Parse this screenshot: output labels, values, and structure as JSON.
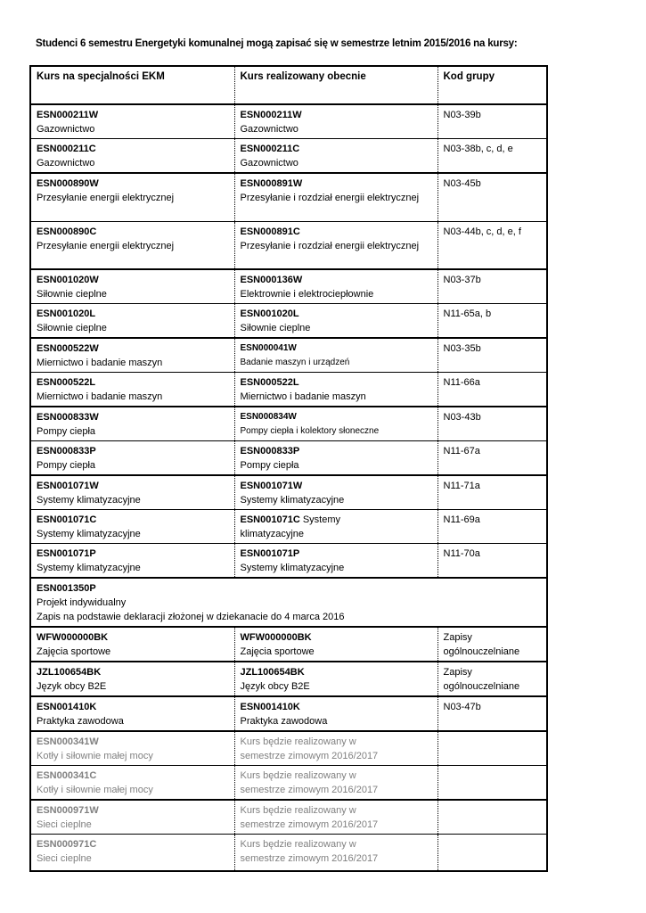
{
  "title": "Studenci 6 semestru Energetyki komunalnej mogą zapisać się w semestrze letnim 2015/2016 na kursy:",
  "colors": {
    "text": "#000000",
    "muted_text": "#808080",
    "border": "#000000",
    "background": "#ffffff"
  },
  "table": {
    "headers": [
      "Kurs na specjalności EKM",
      "Kurs realizowany obecnie",
      "Kod grupy"
    ],
    "rows": [
      {
        "group_start": true,
        "ekm": {
          "code": "ESN000211W",
          "name": "Gazownictwo"
        },
        "current": {
          "code": "ESN000211W",
          "name": "Gazownictwo"
        },
        "group": "N03-39b"
      },
      {
        "ekm": {
          "code": "ESN000211C",
          "name": "Gazownictwo"
        },
        "current": {
          "code": "ESN000211C",
          "name": "Gazownictwo"
        },
        "group": "N03-38b, c, d, e"
      },
      {
        "group_start": true,
        "tall": true,
        "ekm": {
          "code": "ESN000890W",
          "name": "Przesyłanie energii elektrycznej"
        },
        "current": {
          "code": "ESN000891W",
          "name": "Przesyłanie i rozdział energii elektrycznej"
        },
        "group": "N03-45b"
      },
      {
        "tall": true,
        "ekm": {
          "code": "ESN000890C",
          "name": "Przesyłanie energii elektrycznej"
        },
        "current": {
          "code": "ESN000891C",
          "name": "Przesyłanie i rozdział energii elektrycznej"
        },
        "group": "N03-44b, c, d, e, f"
      },
      {
        "group_start": true,
        "ekm": {
          "code": "ESN001020W",
          "name": "Siłownie cieplne"
        },
        "current": {
          "code": "ESN000136W",
          "name": "Elektrownie i elektrociepłownie"
        },
        "group": "N03-37b"
      },
      {
        "ekm": {
          "code": "ESN001020L",
          "name": "Siłownie cieplne"
        },
        "current": {
          "code": "ESN001020L",
          "name": "Siłownie cieplne"
        },
        "group": "N11-65a, b"
      },
      {
        "group_start": true,
        "ekm": {
          "code": "ESN000522W",
          "name": "Miernictwo i badanie maszyn"
        },
        "current": {
          "code": "ESN000041W",
          "name": "Badanie maszyn i urządzeń",
          "small": true
        },
        "group": "N03-35b"
      },
      {
        "ekm": {
          "code": "ESN000522L",
          "name": "Miernictwo i badanie maszyn"
        },
        "current": {
          "code": "ESN000522L",
          "name": "Miernictwo i badanie maszyn"
        },
        "group": "N11-66a"
      },
      {
        "group_start": true,
        "ekm": {
          "code": "ESN000833W",
          "name": "Pompy ciepła"
        },
        "current": {
          "code": "ESN000834W",
          "name": "Pompy ciepła i kolektory słoneczne",
          "small": true
        },
        "group": "N03-43b"
      },
      {
        "ekm": {
          "code": "ESN000833P",
          "name": "Pompy ciepła"
        },
        "current": {
          "code": "ESN000833P",
          "name": "Pompy ciepła"
        },
        "group": "N11-67a"
      },
      {
        "group_start": true,
        "ekm": {
          "code": "ESN001071W",
          "name": "Systemy klimatyzacyjne"
        },
        "current": {
          "code": "ESN001071W",
          "name": "Systemy klimatyzacyjne"
        },
        "group": "N11-71a"
      },
      {
        "ekm": {
          "code": "ESN001071C",
          "name": "Systemy klimatyzacyjne"
        },
        "current": {
          "code": "ESN001071C",
          "name": "Systemy klimatyzacyjne",
          "inline": true
        },
        "group": "N11-69a"
      },
      {
        "ekm": {
          "code": "ESN001071P",
          "name": "Systemy klimatyzacyjne"
        },
        "current": {
          "code": "ESN001071P",
          "name": "Systemy klimatyzacyjne"
        },
        "group": "N11-70a"
      },
      {
        "group_start": true,
        "tall": true,
        "merged": true,
        "code": "ESN001350P",
        "name": "Projekt indywidualny",
        "note": "Zapis na podstawie deklaracji złożonej w dziekanacie do 4 marca 2016"
      },
      {
        "group_start": true,
        "ekm": {
          "code": "WFW000000BK",
          "name": "Zajęcia sportowe"
        },
        "current": {
          "code": "WFW000000BK",
          "name": "Zajęcia sportowe"
        },
        "group": "Zapisy ogólnouczelniane"
      },
      {
        "group_start": true,
        "ekm": {
          "code": "JZL100654BK",
          "name": "Język obcy B2E"
        },
        "current": {
          "code": "JZL100654BK",
          "name": "Język obcy B2E"
        },
        "group": "Zapisy ogólnouczelniane"
      },
      {
        "group_start": true,
        "ekm": {
          "code": "ESN001410K",
          "name": "Praktyka zawodowa"
        },
        "current": {
          "code": "ESN001410K",
          "name": "Praktyka zawodowa"
        },
        "group": "N03-47b"
      },
      {
        "group_start": true,
        "muted": true,
        "ekm": {
          "code": "ESN000341W",
          "name": "Kotły i siłownie małej mocy"
        },
        "note_lines": [
          "Kurs będzie realizowany w",
          "semestrze zimowym 2016/2017"
        ],
        "group": ""
      },
      {
        "muted": true,
        "ekm": {
          "code": "ESN000341C",
          "name": "Kotły i siłownie małej mocy"
        },
        "note_lines": [
          "Kurs będzie realizowany w",
          "semestrze zimowym 2016/2017"
        ],
        "group": ""
      },
      {
        "group_start": true,
        "muted": true,
        "ekm": {
          "code": "ESN000971W",
          "name": "Sieci cieplne"
        },
        "note_lines": [
          "Kurs będzie realizowany w",
          "semestrze zimowym 2016/2017"
        ],
        "group": ""
      },
      {
        "muted": true,
        "last": true,
        "ekm": {
          "code": "ESN000971C",
          "name": "Sieci cieplne"
        },
        "note_lines": [
          "Kurs będzie realizowany w",
          "semestrze zimowym 2016/2017"
        ],
        "group": ""
      }
    ]
  }
}
